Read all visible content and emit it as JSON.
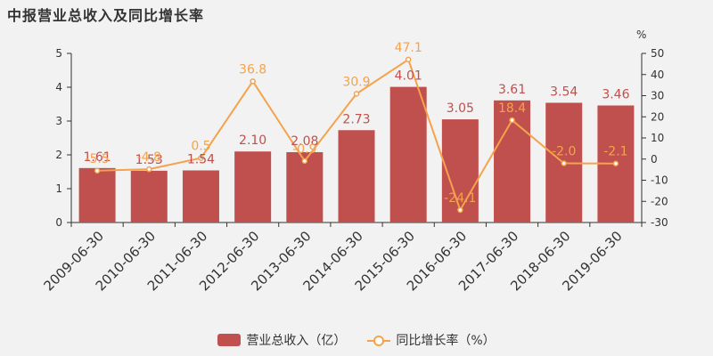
{
  "title": "中报营业总收入及同比增长率",
  "chart_data": {
    "type": "bar",
    "title": "中报营业总收入及同比增长率",
    "categories": [
      "2009-06-30",
      "2010-06-30",
      "2011-06-30",
      "2012-06-30",
      "2013-06-30",
      "2014-06-30",
      "2015-06-30",
      "2016-06-30",
      "2017-06-30",
      "2018-06-30",
      "2019-06-30"
    ],
    "series": [
      {
        "name": "营业总收入（亿）",
        "type": "bar",
        "axis": "left",
        "color": "#c0504d",
        "values": [
          1.61,
          1.53,
          1.54,
          2.1,
          2.08,
          2.73,
          4.01,
          3.05,
          3.61,
          3.54,
          3.46
        ],
        "labels": [
          "1.61",
          "1.53",
          "1.54",
          "2.10",
          "2.08",
          "2.73",
          "4.01",
          "3.05",
          "3.61",
          "3.54",
          "3.46"
        ]
      },
      {
        "name": "同比增长率（%）",
        "type": "line",
        "axis": "right",
        "color": "#f4a34c",
        "values": [
          -5.5,
          -4.8,
          0.5,
          36.8,
          -0.9,
          30.9,
          47.1,
          -24.1,
          18.4,
          -2.0,
          -2.1
        ],
        "labels": [
          "-5.5",
          "-4.8",
          "0.5",
          "36.8",
          "-0.9",
          "30.9",
          "47.1",
          "-24.1",
          "18.4",
          "-2.0",
          "-2.1"
        ]
      }
    ],
    "y_left": {
      "min": 0,
      "max": 5,
      "ticks": [
        "0",
        "1",
        "2",
        "3",
        "4",
        "5"
      ]
    },
    "y_right": {
      "min": -30,
      "max": 50,
      "ticks": [
        "-30",
        "-20",
        "-10",
        "0",
        "10",
        "20",
        "30",
        "40",
        "50"
      ],
      "unit": "%"
    },
    "legend_position": "bottom-center",
    "grid": false
  },
  "legend": {
    "bar_label": "营业总收入（亿）",
    "line_label": "同比增长率（%）"
  }
}
